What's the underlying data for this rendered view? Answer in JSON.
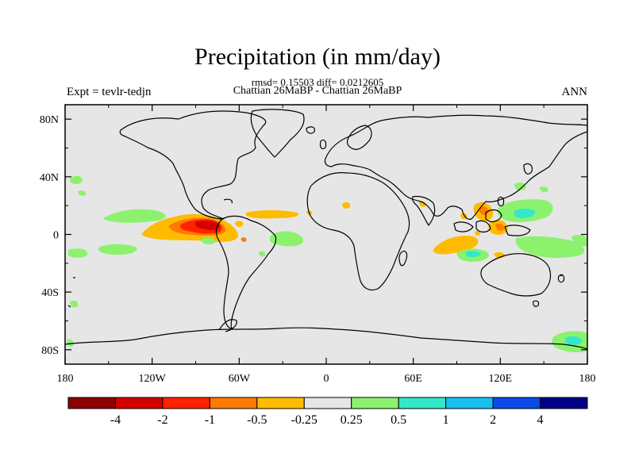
{
  "title": "Precipitation (in mm/day)",
  "stats": "rmsd= 0.15503 diff= 0.0212605",
  "case": "Chattian  26MaBP - Chattian  26MaBP",
  "left_label": "Expt = tevlr-tedjn",
  "right_label": "ANN",
  "colors": {
    "background_field": "#e6e6e6",
    "coastline": "#000000"
  },
  "chart_data": {
    "type": "heatmap",
    "projection": "cylindrical-equidistant",
    "xlim": [
      -180,
      180
    ],
    "ylim": [
      -90,
      90
    ],
    "x_ticks": [
      "180",
      "120W",
      "60W",
      "0",
      "60E",
      "120E",
      "180"
    ],
    "y_ticks": [
      "80N",
      "40N",
      "0",
      "40S",
      "80S"
    ],
    "colorbar": {
      "labels": [
        "-4",
        "-2",
        "-1",
        "-0.5",
        "-0.25",
        "0.25",
        "0.5",
        "1",
        "2",
        "4"
      ],
      "colors": [
        "#8b0000",
        "#d40000",
        "#ff2200",
        "#ff7a00",
        "#ffbb00",
        "#e6e6e6",
        "#8cf26e",
        "#33e8c8",
        "#18c0f0",
        "#0a4ae6",
        "#00008a"
      ]
    },
    "anomalies": [
      {
        "region": "eastern-tropical-pacific",
        "lon": -95,
        "lat": 2,
        "class": "-1 to -2"
      },
      {
        "region": "eastern-tropical-pacific-core",
        "lon": -88,
        "lat": 5,
        "class": "-2 to -4"
      },
      {
        "region": "central-pacific-north",
        "lon": -130,
        "lat": 10,
        "class": "0.25 to 0.5"
      },
      {
        "region": "central-pacific-south",
        "lon": -140,
        "lat": -12,
        "class": "0.25 to 0.5"
      },
      {
        "region": "tropical-atlantic",
        "lon": -35,
        "lat": 12,
        "class": "-0.25 to -0.5"
      },
      {
        "region": "equatorial-atlantic",
        "lon": -25,
        "lat": -3,
        "class": "0.25 to 0.5"
      },
      {
        "region": "maritime-continent",
        "lon": 115,
        "lat": 5,
        "class": "-0.5 to -1"
      },
      {
        "region": "western-pacific",
        "lon": 138,
        "lat": 13,
        "class": "0.5 to 1"
      },
      {
        "region": "southern-indian-ocean",
        "lon": 75,
        "lat": -5,
        "class": "-0.25 to -0.5"
      },
      {
        "region": "indian-ocean-southeast",
        "lon": 105,
        "lat": -12,
        "class": "0.5 to 1"
      },
      {
        "region": "south-pacific",
        "lon": 160,
        "lat": -12,
        "class": "0.25 to 0.5"
      },
      {
        "region": "southern-ocean",
        "lon": 168,
        "lat": -75,
        "class": "0.5 to 1"
      }
    ]
  }
}
